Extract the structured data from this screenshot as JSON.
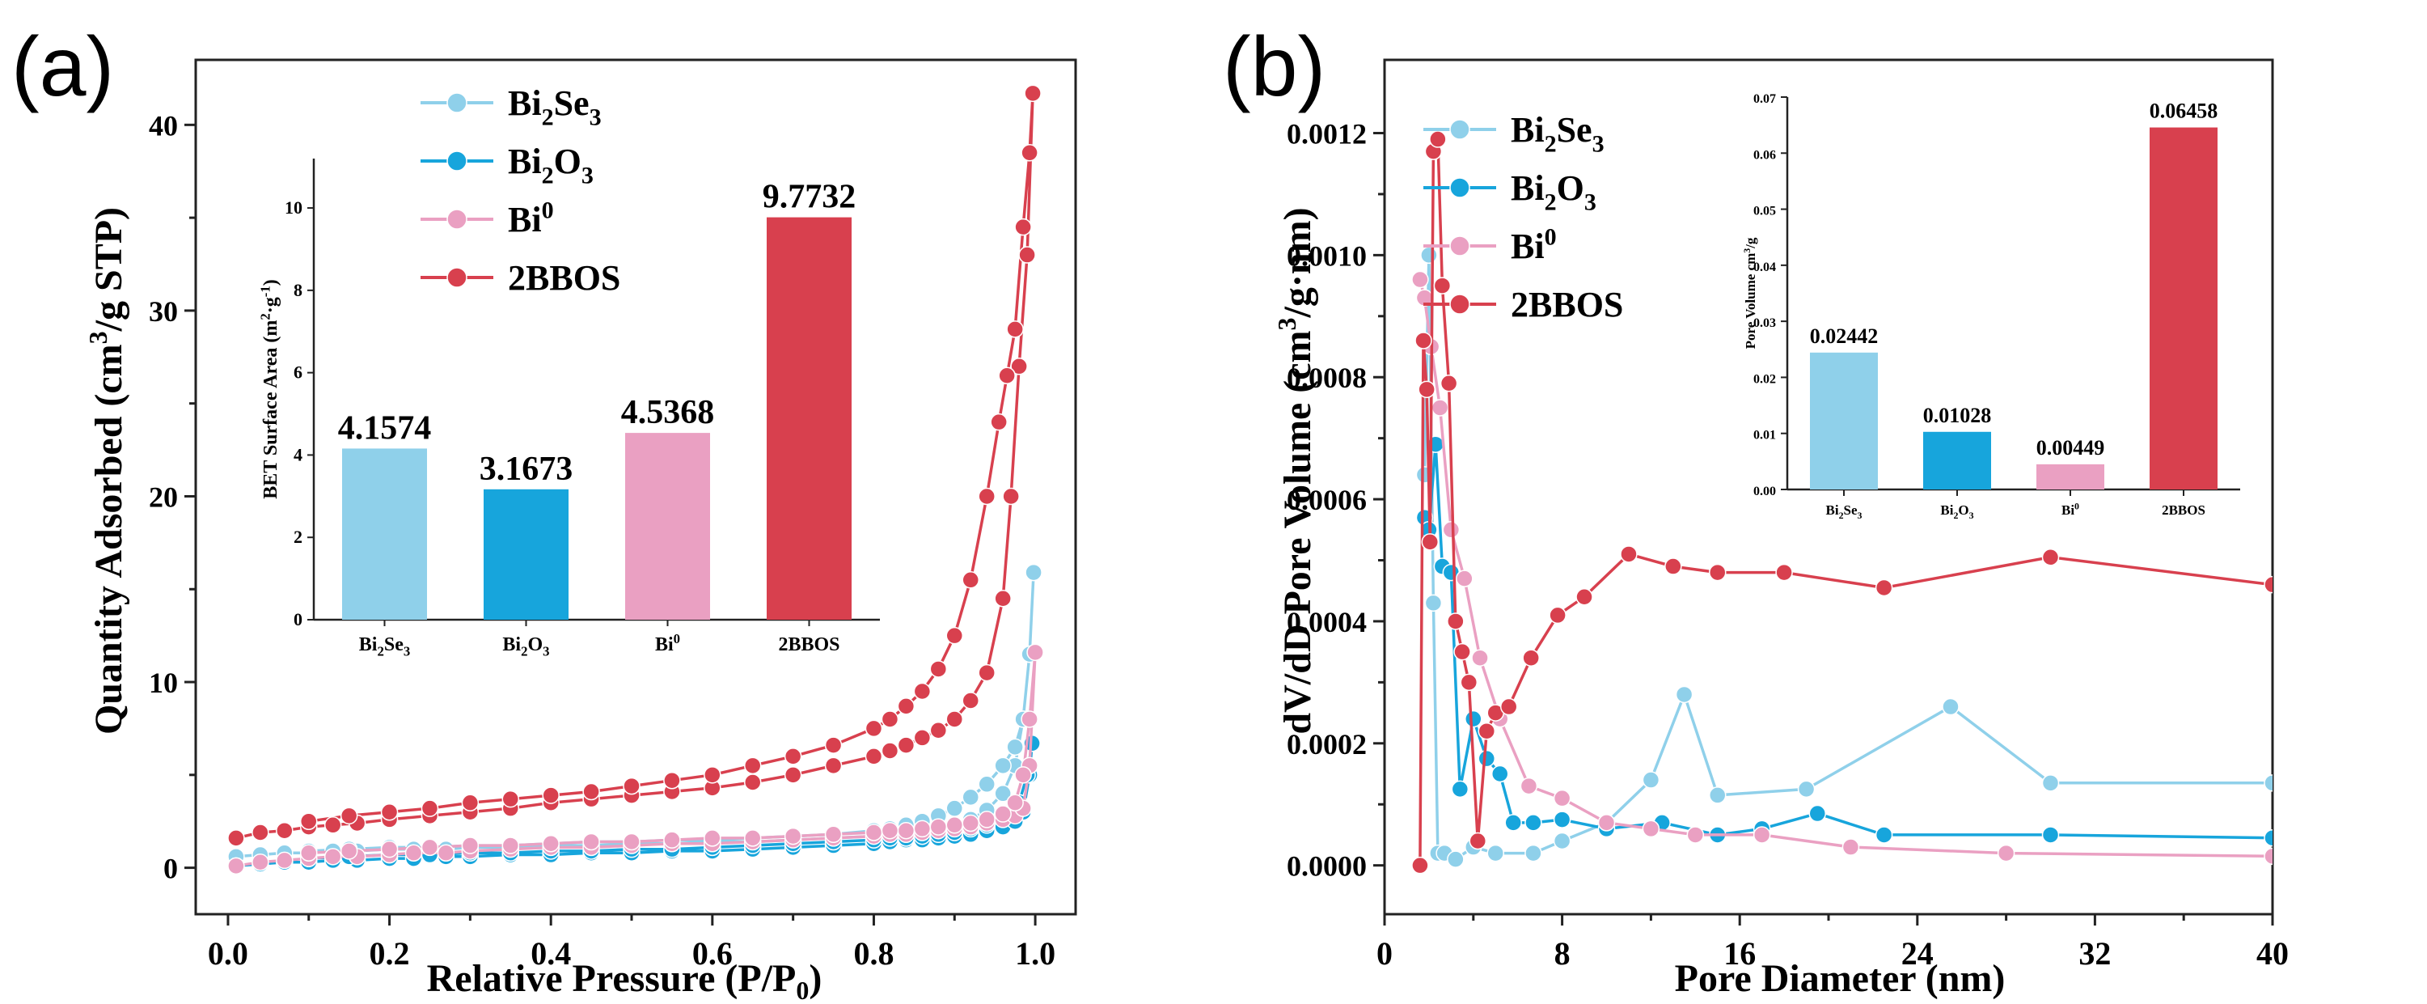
{
  "colors": {
    "Bi2Se3": "#8fd0ea",
    "Bi2O3": "#17a5dc",
    "Bi0": "#eaa0c2",
    "2BBOS": "#d8404e"
  },
  "chart_data": [
    {
      "type": "line",
      "panel_label": "(a)",
      "title": "",
      "xlabel": "Relative Pressure (P/P",
      "xlabel_sub": "0",
      "xlabel_tail": ")",
      "ylabel": "Quantity Adsorbed (cm",
      "ylabel_sup": "3",
      "ylabel_tail": "/g STP)",
      "xlim": [
        -0.04,
        1.05
      ],
      "ylim": [
        -2.5,
        43.5
      ],
      "xticks": [
        "0.0",
        "0.2",
        "0.4",
        "0.6",
        "0.8",
        "1.0"
      ],
      "xtick_values": [
        0,
        0.2,
        0.4,
        0.6,
        0.8,
        1.0
      ],
      "yticks": [
        "0",
        "10",
        "20",
        "30",
        "40"
      ],
      "ytick_values": [
        0,
        10,
        20,
        30,
        40
      ],
      "legend_position": "top-left",
      "series": [
        {
          "name": "Bi2Se3",
          "name_base": "Bi",
          "name_sub": "2",
          "name_mid": "Se",
          "name_sub2": "3",
          "name_sup": "",
          "x": [
            0.01,
            0.04,
            0.07,
            0.1,
            0.13,
            0.16,
            0.2,
            0.23,
            0.27,
            0.3,
            0.35,
            0.4,
            0.45,
            0.5,
            0.55,
            0.6,
            0.65,
            0.7,
            0.75,
            0.8,
            0.82,
            0.84,
            0.86,
            0.88,
            0.9,
            0.92,
            0.94,
            0.96,
            0.975,
            0.985,
            0.993,
            0.998,
            0.993,
            0.985,
            0.975,
            0.96,
            0.94,
            0.92,
            0.9,
            0.88,
            0.86,
            0.84,
            0.82,
            0.8,
            0.75,
            0.7,
            0.65,
            0.6,
            0.55,
            0.5,
            0.45,
            0.4,
            0.35,
            0.3,
            0.25,
            0.2,
            0.15,
            0.1
          ],
          "y": [
            0.6,
            0.7,
            0.8,
            0.8,
            0.9,
            0.9,
            1.0,
            1.0,
            1.0,
            1.1,
            1.1,
            1.2,
            1.2,
            1.3,
            1.3,
            1.4,
            1.4,
            1.5,
            1.6,
            1.7,
            1.8,
            1.9,
            2.0,
            2.1,
            2.3,
            2.6,
            3.1,
            4.0,
            5.5,
            8.0,
            11.5,
            15.9,
            11.5,
            8.0,
            6.5,
            5.5,
            4.5,
            3.8,
            3.2,
            2.8,
            2.5,
            2.3,
            2.1,
            2.0,
            1.8,
            1.7,
            1.6,
            1.5,
            1.5,
            1.4,
            1.4,
            1.3,
            1.2,
            1.2,
            1.1,
            1.1,
            1.0,
            0.9
          ]
        },
        {
          "name": "Bi2O3",
          "name_base": "Bi",
          "name_sub": "2",
          "name_mid": "O",
          "name_sub2": "3",
          "name_sup": "",
          "x": [
            0.01,
            0.04,
            0.07,
            0.1,
            0.13,
            0.16,
            0.2,
            0.23,
            0.27,
            0.3,
            0.35,
            0.4,
            0.45,
            0.5,
            0.55,
            0.6,
            0.65,
            0.7,
            0.75,
            0.8,
            0.82,
            0.84,
            0.86,
            0.88,
            0.9,
            0.92,
            0.94,
            0.96,
            0.975,
            0.985,
            0.993,
            0.996,
            0.99,
            0.98,
            0.96,
            0.94,
            0.92,
            0.9,
            0.88,
            0.86,
            0.84,
            0.82,
            0.8,
            0.75,
            0.7,
            0.65,
            0.6,
            0.55,
            0.5,
            0.45,
            0.4,
            0.35,
            0.3,
            0.25,
            0.2,
            0.15,
            0.1
          ],
          "y": [
            0.1,
            0.2,
            0.3,
            0.3,
            0.4,
            0.4,
            0.5,
            0.5,
            0.6,
            0.6,
            0.7,
            0.7,
            0.8,
            0.8,
            0.9,
            0.9,
            1.0,
            1.1,
            1.2,
            1.3,
            1.4,
            1.5,
            1.5,
            1.6,
            1.7,
            1.8,
            2.0,
            2.2,
            2.5,
            3.0,
            5.0,
            6.7,
            5.0,
            3.5,
            2.7,
            2.3,
            2.1,
            1.9,
            1.8,
            1.7,
            1.6,
            1.6,
            1.5,
            1.4,
            1.3,
            1.2,
            1.1,
            1.0,
            1.0,
            0.9,
            0.9,
            0.8,
            0.8,
            0.7,
            0.7,
            0.6,
            0.5
          ]
        },
        {
          "name": "Bi0",
          "name_base": "Bi",
          "name_sub": "",
          "name_mid": "",
          "name_sub2": "",
          "name_sup": "0",
          "x": [
            0.01,
            0.04,
            0.07,
            0.1,
            0.13,
            0.16,
            0.2,
            0.23,
            0.27,
            0.3,
            0.35,
            0.4,
            0.45,
            0.5,
            0.55,
            0.6,
            0.65,
            0.7,
            0.75,
            0.8,
            0.82,
            0.84,
            0.86,
            0.88,
            0.9,
            0.92,
            0.94,
            0.96,
            0.975,
            0.985,
            0.993,
            1.0,
            0.993,
            0.985,
            0.975,
            0.96,
            0.94,
            0.92,
            0.9,
            0.88,
            0.86,
            0.84,
            0.82,
            0.8,
            0.75,
            0.7,
            0.65,
            0.6,
            0.55,
            0.5,
            0.45,
            0.4,
            0.35,
            0.3,
            0.25,
            0.2,
            0.15,
            0.1
          ],
          "y": [
            0.1,
            0.3,
            0.4,
            0.5,
            0.6,
            0.6,
            0.7,
            0.8,
            0.8,
            0.9,
            1.0,
            1.1,
            1.1,
            1.2,
            1.3,
            1.3,
            1.4,
            1.5,
            1.6,
            1.7,
            1.8,
            1.8,
            1.9,
            2.0,
            2.1,
            2.2,
            2.4,
            2.6,
            2.8,
            3.2,
            5.5,
            11.6,
            8.0,
            5.0,
            3.5,
            2.9,
            2.6,
            2.4,
            2.3,
            2.2,
            2.1,
            2.0,
            2.0,
            1.9,
            1.8,
            1.7,
            1.6,
            1.6,
            1.5,
            1.4,
            1.4,
            1.3,
            1.2,
            1.2,
            1.1,
            1.0,
            0.9,
            0.8
          ]
        },
        {
          "name": "2BBOS",
          "name_base": "2BBOS",
          "name_sub": "",
          "name_mid": "",
          "name_sub2": "",
          "name_sup": "",
          "x": [
            0.01,
            0.04,
            0.07,
            0.1,
            0.13,
            0.16,
            0.2,
            0.25,
            0.3,
            0.35,
            0.4,
            0.45,
            0.5,
            0.55,
            0.6,
            0.65,
            0.7,
            0.75,
            0.8,
            0.82,
            0.84,
            0.86,
            0.88,
            0.9,
            0.92,
            0.94,
            0.96,
            0.97,
            0.98,
            0.99,
            0.997,
            0.993,
            0.985,
            0.975,
            0.965,
            0.955,
            0.94,
            0.92,
            0.9,
            0.88,
            0.86,
            0.84,
            0.82,
            0.8,
            0.75,
            0.7,
            0.65,
            0.6,
            0.55,
            0.5,
            0.45,
            0.4,
            0.35,
            0.3,
            0.25,
            0.2,
            0.15,
            0.1
          ],
          "y": [
            1.6,
            1.9,
            2.0,
            2.2,
            2.3,
            2.4,
            2.6,
            2.8,
            3.0,
            3.2,
            3.5,
            3.7,
            3.9,
            4.1,
            4.3,
            4.6,
            5.0,
            5.5,
            6.0,
            6.3,
            6.6,
            7.0,
            7.4,
            8.0,
            9.0,
            10.5,
            14.5,
            20.0,
            27.0,
            33.0,
            41.7,
            38.5,
            34.5,
            29.0,
            26.5,
            24.0,
            20.0,
            15.5,
            12.5,
            10.7,
            9.5,
            8.7,
            8.0,
            7.5,
            6.6,
            6.0,
            5.5,
            5.0,
            4.7,
            4.4,
            4.1,
            3.9,
            3.7,
            3.5,
            3.2,
            3.0,
            2.8,
            2.5
          ]
        }
      ],
      "inset": {
        "type": "bar",
        "ylabel": "BET Surface Area (m",
        "ylabel_sup": "2",
        "ylabel_mid": "·g",
        "ylabel_sup2": "-1",
        "ylabel_tail": ")",
        "ylim": [
          0,
          11.2
        ],
        "yticks": [
          "0",
          "2",
          "4",
          "6",
          "8",
          "10"
        ],
        "ytick_values": [
          0,
          2,
          4,
          6,
          8,
          10
        ],
        "categories": [
          "Bi2Se3",
          "Bi2O3",
          "Bi0",
          "2BBOS"
        ],
        "values": [
          4.1574,
          3.1673,
          4.5368,
          9.7732
        ],
        "value_labels": [
          "4.1574",
          "3.1673",
          "4.5368",
          "9.7732"
        ]
      }
    },
    {
      "type": "line",
      "panel_label": "(b)",
      "title": "",
      "xlabel": "Pore Diameter (nm)",
      "ylabel": "dV/dD Pore Volume (cm",
      "ylabel_sup": "3",
      "ylabel_tail": "/g·nm)",
      "xlim": [
        0,
        40
      ],
      "ylim": [
        -8e-05,
        0.00132
      ],
      "xticks": [
        "0",
        "8",
        "16",
        "24",
        "32",
        "40"
      ],
      "xtick_values": [
        0,
        8,
        16,
        24,
        32,
        40
      ],
      "yticks": [
        "0.0000",
        "0.0002",
        "0.0004",
        "0.0006",
        "0.0008",
        "0.0010",
        "0.0012"
      ],
      "ytick_values": [
        0,
        0.0002,
        0.0004,
        0.0006,
        0.0008,
        0.001,
        0.0012
      ],
      "legend_position": "top-left",
      "series": [
        {
          "name": "Bi2Se3",
          "x": [
            1.8,
            2.0,
            2.2,
            2.4,
            2.7,
            3.2,
            4.0,
            5.0,
            6.7,
            8.0,
            10.0,
            12.0,
            13.5,
            15.0,
            19.0,
            25.5,
            30.0,
            40.0
          ],
          "y": [
            0.00064,
            0.001,
            0.00043,
            2e-05,
            2e-05,
            1e-05,
            3e-05,
            2e-05,
            2e-05,
            4e-05,
            7e-05,
            0.00014,
            0.00028,
            0.000115,
            0.000125,
            0.00026,
            0.000135,
            0.000135
          ]
        },
        {
          "name": "Bi2O3",
          "x": [
            1.8,
            2.0,
            2.3,
            2.6,
            3.0,
            3.4,
            4.0,
            4.6,
            5.2,
            5.8,
            6.7,
            8.0,
            10.0,
            12.5,
            15.0,
            17.0,
            19.5,
            22.5,
            30.0,
            40.0
          ],
          "y": [
            0.00057,
            0.00055,
            0.00069,
            0.00049,
            0.00048,
            0.000125,
            0.00024,
            0.000175,
            0.00015,
            7e-05,
            7e-05,
            7.5e-05,
            6e-05,
            7e-05,
            5e-05,
            6e-05,
            8.5e-05,
            5e-05,
            5e-05,
            4.5e-05
          ]
        },
        {
          "name": "Bi0",
          "x": [
            1.6,
            1.8,
            2.1,
            2.5,
            3.0,
            3.6,
            4.3,
            5.2,
            6.5,
            8.0,
            10.0,
            12.0,
            14.0,
            17.0,
            21.0,
            28.0,
            40.0
          ],
          "y": [
            0.00096,
            0.00093,
            0.00085,
            0.00075,
            0.00055,
            0.00047,
            0.00034,
            0.00024,
            0.00013,
            0.00011,
            7e-05,
            6e-05,
            5e-05,
            5e-05,
            3e-05,
            2e-05,
            1.5e-05
          ]
        },
        {
          "name": "2BBOS",
          "x": [
            1.6,
            1.75,
            1.9,
            2.05,
            2.2,
            2.4,
            2.6,
            2.9,
            3.2,
            3.5,
            3.8,
            4.2,
            4.6,
            5.0,
            5.6,
            6.6,
            7.8,
            9.0,
            11.0,
            13.0,
            15.0,
            18.0,
            22.5,
            30.0,
            40.0
          ],
          "y": [
            0.0,
            0.00086,
            0.00078,
            0.00053,
            0.00117,
            0.00119,
            0.00095,
            0.00079,
            0.0004,
            0.00035,
            0.0003,
            4e-05,
            0.00022,
            0.00025,
            0.00026,
            0.00034,
            0.00041,
            0.00044,
            0.00051,
            0.00049,
            0.00048,
            0.00048,
            0.000455,
            0.000505,
            0.00046
          ]
        }
      ],
      "inset": {
        "type": "bar",
        "ylabel": "Pore Volume cm",
        "ylabel_sup": "3",
        "ylabel_tail": "/g",
        "ylim": [
          0,
          0.07
        ],
        "yticks": [
          "0.00",
          "0.01",
          "0.02",
          "0.03",
          "0.04",
          "0.05",
          "0.06",
          "0.07"
        ],
        "ytick_values": [
          0,
          0.01,
          0.02,
          0.03,
          0.04,
          0.05,
          0.06,
          0.07
        ],
        "categories": [
          "Bi2Se3",
          "Bi2O3",
          "Bi0",
          "2BBOS"
        ],
        "values": [
          0.02442,
          0.01028,
          0.00449,
          0.06458
        ],
        "value_labels": [
          "0.02442",
          "0.01028",
          "0.00449",
          "0.06458"
        ]
      }
    }
  ]
}
